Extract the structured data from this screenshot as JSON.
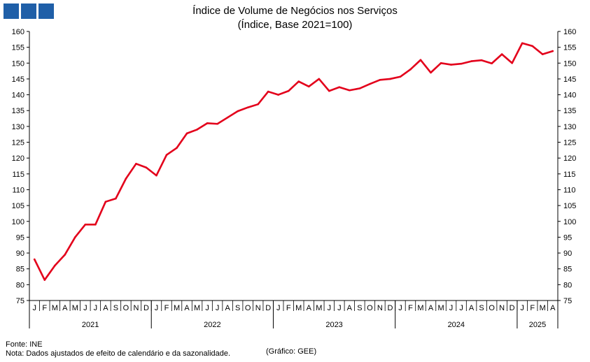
{
  "logo": {
    "icon": "ine-logo-squares",
    "color": "#1f5fa8"
  },
  "chart_data": {
    "type": "line",
    "title": "Índice de Volume de Negócios nos Serviços",
    "subtitle": "(Índice, Base 2021=100)",
    "xlabel": "",
    "ylabel": "",
    "ylim": [
      75,
      160
    ],
    "yticks": [
      75,
      80,
      85,
      90,
      95,
      100,
      105,
      110,
      115,
      120,
      125,
      130,
      135,
      140,
      145,
      150,
      155,
      160
    ],
    "grid": false,
    "legend": "none",
    "month_labels": [
      "J",
      "F",
      "M",
      "A",
      "M",
      "J",
      "J",
      "A",
      "S",
      "O",
      "N",
      "D",
      "J",
      "F",
      "M",
      "A",
      "M",
      "J",
      "J",
      "A",
      "S",
      "O",
      "N",
      "D",
      "J",
      "F",
      "M",
      "A",
      "M",
      "J",
      "J",
      "A",
      "S",
      "O",
      "N",
      "D",
      "J",
      "F",
      "M",
      "A",
      "M",
      "J",
      "J",
      "A",
      "S",
      "O",
      "N",
      "D",
      "J",
      "F",
      "M",
      "A"
    ],
    "years": [
      {
        "label": "2021",
        "months": 12
      },
      {
        "label": "2022",
        "months": 12
      },
      {
        "label": "2023",
        "months": 12
      },
      {
        "label": "2024",
        "months": 12
      },
      {
        "label": "2025",
        "months": 4
      }
    ],
    "series": [
      {
        "color": "#e3001b",
        "values": [
          88.0,
          81.5,
          86.0,
          89.5,
          95.0,
          99.0,
          99.0,
          106.2,
          107.2,
          113.5,
          118.2,
          117.0,
          114.5,
          121.0,
          123.2,
          127.8,
          129.0,
          131.0,
          130.8,
          132.8,
          134.8,
          136.0,
          137.0,
          141.0,
          140.0,
          141.2,
          144.2,
          142.6,
          145.0,
          141.2,
          142.4,
          141.4,
          142.0,
          143.4,
          144.7,
          145.0,
          145.7,
          148.0,
          151.0,
          147.0,
          150.0,
          149.5,
          149.8,
          150.6,
          150.9,
          149.9,
          152.8,
          150.0,
          156.3,
          155.4,
          152.8,
          153.8
        ]
      }
    ]
  },
  "footer": {
    "source": "Fonte: INE",
    "note": "Nota: Dados ajustados de efeito de calendário e da sazonalidade.",
    "credit": "(Gráfico: GEE)"
  }
}
